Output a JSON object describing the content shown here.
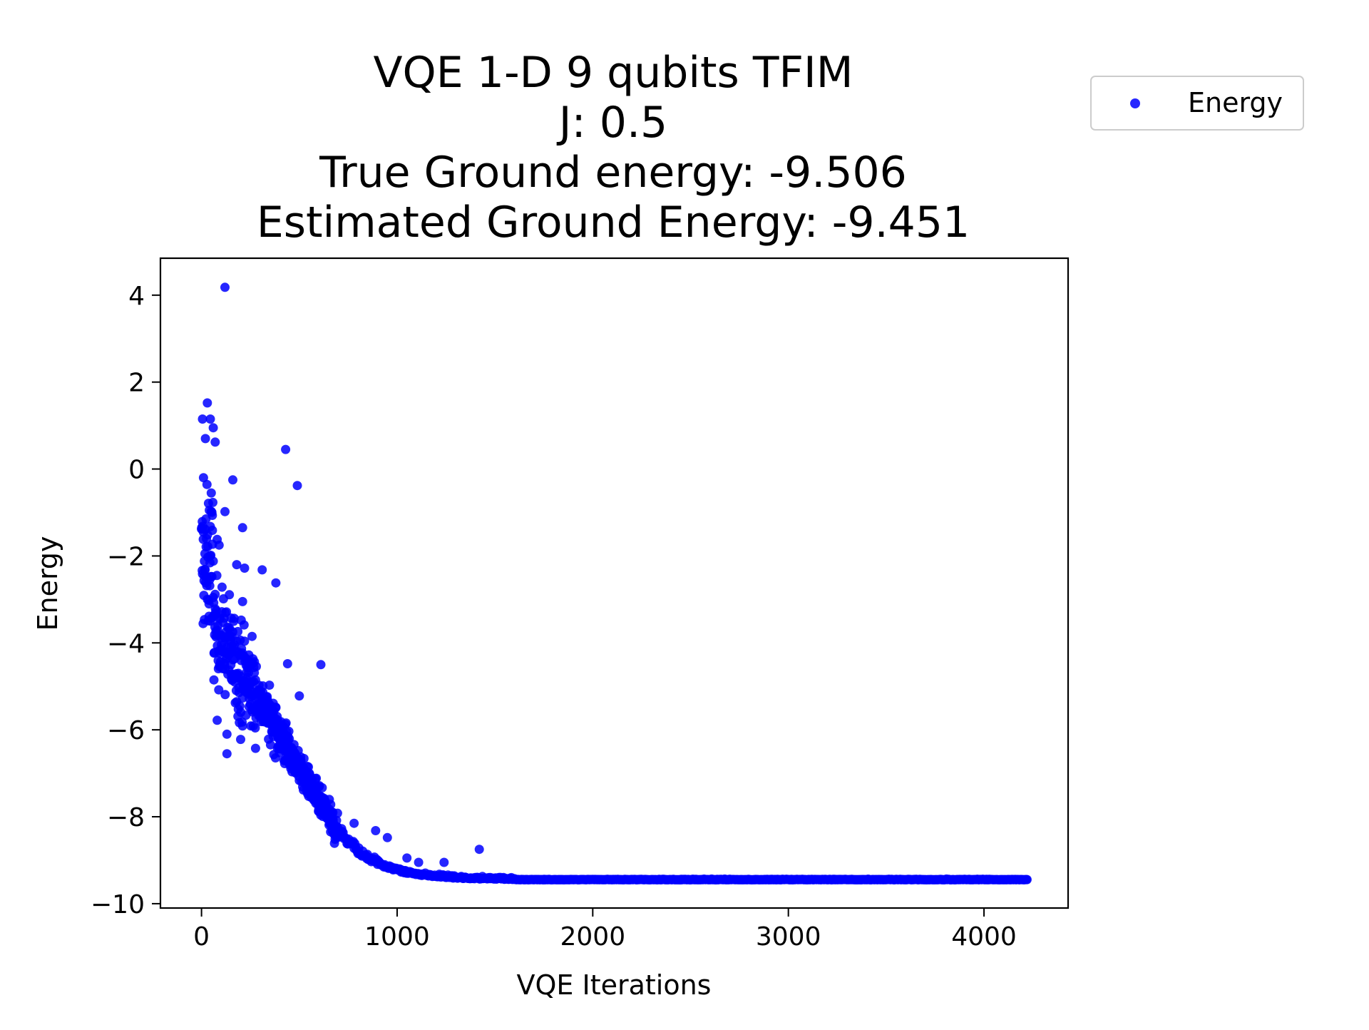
{
  "chart_data": {
    "type": "scatter",
    "title_lines": [
      "VQE 1-D 9 qubits TFIM",
      "J: 0.5",
      "True Ground energy: -9.506",
      "Estimated Ground Energy: -9.451"
    ],
    "xlabel": "VQE Iterations",
    "ylabel": "Energy",
    "xlim": [
      -210,
      4430
    ],
    "ylim": [
      -10.1,
      4.85
    ],
    "xticks": [
      0,
      1000,
      2000,
      3000,
      4000
    ],
    "xtick_labels": [
      "0",
      "1000",
      "2000",
      "3000",
      "4000"
    ],
    "yticks": [
      4,
      2,
      0,
      -2,
      -4,
      -6,
      -8,
      -10
    ],
    "ytick_labels": [
      "4",
      "2",
      "0",
      "−2",
      "−4",
      "−6",
      "−8",
      "−10"
    ],
    "legend": {
      "placement": "outside-top-right",
      "entries": [
        "Energy"
      ]
    },
    "grid": false,
    "series": [
      {
        "name": "Energy",
        "color": "#0000ff",
        "x_range": [
          0,
          4220
        ],
        "final_value": -9.451,
        "outliers": [
          [
            120,
            4.18
          ],
          [
            30,
            1.52
          ],
          [
            5,
            1.15
          ],
          [
            45,
            1.15
          ],
          [
            60,
            0.95
          ],
          [
            20,
            0.7
          ],
          [
            70,
            0.62
          ],
          [
            430,
            0.45
          ],
          [
            490,
            -0.38
          ],
          [
            160,
            -0.25
          ],
          [
            10,
            -0.2
          ],
          [
            50,
            -0.55
          ],
          [
            120,
            -0.98
          ],
          [
            40,
            -0.95
          ],
          [
            210,
            -1.35
          ],
          [
            0,
            -1.38
          ],
          [
            80,
            -1.62
          ],
          [
            90,
            -1.75
          ],
          [
            15,
            -2.12
          ],
          [
            60,
            -2.12
          ],
          [
            180,
            -2.2
          ],
          [
            220,
            -2.28
          ],
          [
            310,
            -2.32
          ],
          [
            380,
            -2.62
          ],
          [
            210,
            -3.05
          ],
          [
            440,
            -4.48
          ],
          [
            610,
            -4.5
          ],
          [
            500,
            -5.22
          ],
          [
            370,
            -5.57
          ],
          [
            80,
            -5.78
          ],
          [
            130,
            -6.1
          ],
          [
            130,
            -6.55
          ],
          [
            200,
            -6.22
          ],
          [
            600,
            -7.82
          ],
          [
            780,
            -8.15
          ],
          [
            890,
            -8.32
          ],
          [
            950,
            -8.48
          ],
          [
            1420,
            -8.75
          ],
          [
            1240,
            -9.05
          ],
          [
            1110,
            -9.05
          ],
          [
            1050,
            -8.95
          ]
        ]
      }
    ]
  }
}
